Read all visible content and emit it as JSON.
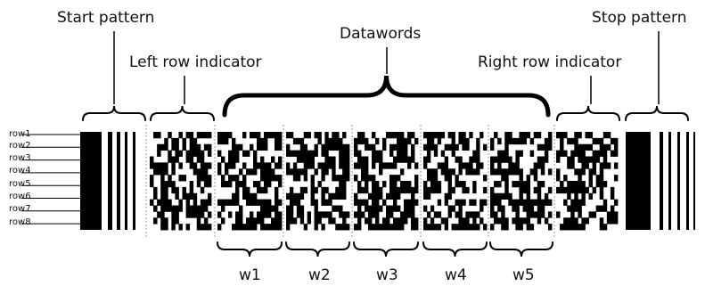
{
  "labels": {
    "start_pattern": "Start pattern",
    "left_row_indicator": "Left row indicator",
    "datawords": "Datawords",
    "right_row_indicator": "Right row indicator",
    "stop_pattern": "Stop pattern"
  },
  "rows": [
    "row1",
    "row2",
    "row3",
    "row4",
    "row5",
    "row6",
    "row7",
    "row8"
  ],
  "words": [
    "w1",
    "w2",
    "w3",
    "w4",
    "w5"
  ],
  "colors": {
    "ink": "#000000",
    "background": "#ffffff",
    "guide": "#999999"
  }
}
